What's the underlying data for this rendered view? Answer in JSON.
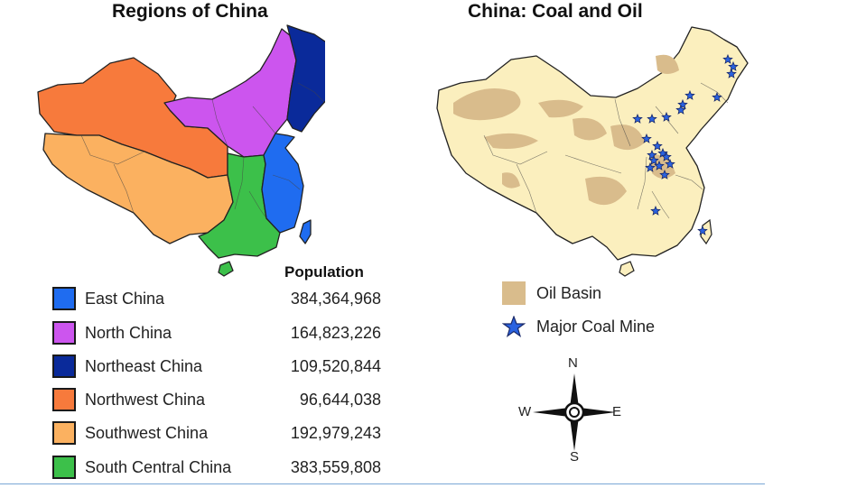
{
  "left_map": {
    "title": "Regions of China",
    "population_header": "Population",
    "regions": [
      {
        "name": "East China",
        "population": "384,364,968",
        "color": "#1f6cf0"
      },
      {
        "name": "North China",
        "population": "164,823,226",
        "color": "#cc55ee"
      },
      {
        "name": "Northeast China",
        "population": "109,520,844",
        "color": "#0a2a9a"
      },
      {
        "name": "Northwest China",
        "population": "96,644,038",
        "color": "#f77a3c"
      },
      {
        "name": "Southwest China",
        "population": "192,979,243",
        "color": "#fbb160"
      },
      {
        "name": "South Central China",
        "population": "383,559,808",
        "color": "#3cc04a"
      }
    ]
  },
  "right_map": {
    "title": "China: Coal and Oil",
    "land_color": "#fbefbe",
    "oil_color": "#d9bc8c",
    "star_color": "#2a62e0",
    "legend": {
      "oil_label": "Oil Basin",
      "coal_label": "Major Coal Mine",
      "oil_icon": "oil-basin-swatch",
      "coal_icon": "star-icon"
    },
    "compass": {
      "n": "N",
      "s": "S",
      "e": "E",
      "w": "W",
      "icon": "compass-rose-icon"
    }
  }
}
